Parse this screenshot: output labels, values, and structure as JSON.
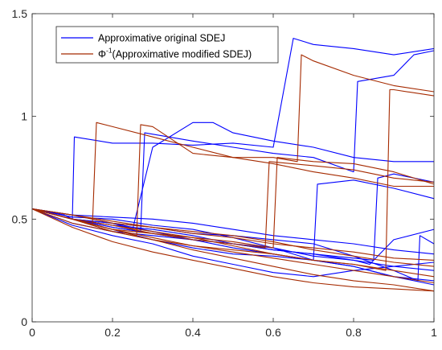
{
  "chart_data": {
    "type": "line",
    "title": "",
    "xlabel": "",
    "ylabel": "",
    "xlim": [
      0,
      1
    ],
    "ylim": [
      0,
      1.5
    ],
    "xticks": [
      "0",
      "0.2",
      "0.4",
      "0.6",
      "0.8",
      "1"
    ],
    "yticks": [
      "0",
      "0.5",
      "1",
      "1.5"
    ],
    "grid": false,
    "legend_position": "top-left",
    "colors": {
      "original": "#0000ff",
      "modified": "#a52a00",
      "axis": "#262626"
    },
    "legend": [
      {
        "key": "original",
        "text": "Approximative original SDEJ"
      },
      {
        "key": "modified",
        "prefix": "Φ",
        "superscript": "-1",
        "text": "(Approximative modified SDEJ)"
      }
    ],
    "series": [
      {
        "group": "original",
        "x": [
          0,
          0.08,
          0.1,
          0.105,
          0.2,
          0.3,
          0.4,
          0.5,
          0.6,
          0.65,
          0.7,
          0.8,
          0.9,
          1.0
        ],
        "y": [
          0.55,
          0.52,
          0.5,
          0.9,
          0.87,
          0.87,
          0.86,
          0.87,
          0.85,
          1.38,
          1.35,
          1.33,
          1.3,
          1.33
        ]
      },
      {
        "group": "original",
        "x": [
          0,
          0.1,
          0.2,
          0.25,
          0.3,
          0.4,
          0.45,
          0.5,
          0.55,
          0.6,
          0.7,
          0.8,
          0.9,
          1.0
        ],
        "y": [
          0.55,
          0.5,
          0.48,
          0.45,
          0.85,
          0.97,
          0.97,
          0.92,
          0.9,
          0.88,
          0.85,
          0.8,
          0.78,
          0.78
        ]
      },
      {
        "group": "original",
        "x": [
          0,
          0.1,
          0.2,
          0.27,
          0.28,
          0.4,
          0.5,
          0.6,
          0.7,
          0.8,
          0.81,
          0.9,
          0.95,
          1.0
        ],
        "y": [
          0.55,
          0.5,
          0.46,
          0.44,
          0.92,
          0.88,
          0.85,
          0.82,
          0.8,
          0.73,
          1.17,
          1.2,
          1.3,
          1.32
        ]
      },
      {
        "group": "original",
        "x": [
          0,
          0.1,
          0.2,
          0.3,
          0.4,
          0.5,
          0.6,
          0.7,
          0.71,
          0.8,
          0.9,
          1.0
        ],
        "y": [
          0.55,
          0.48,
          0.44,
          0.42,
          0.4,
          0.36,
          0.33,
          0.3,
          0.67,
          0.69,
          0.65,
          0.6
        ]
      },
      {
        "group": "original",
        "x": [
          0,
          0.1,
          0.2,
          0.3,
          0.4,
          0.5,
          0.6,
          0.7,
          0.8,
          0.85,
          0.86,
          0.9,
          1.0
        ],
        "y": [
          0.55,
          0.5,
          0.46,
          0.43,
          0.4,
          0.38,
          0.35,
          0.33,
          0.31,
          0.3,
          0.7,
          0.72,
          0.68
        ]
      },
      {
        "group": "original",
        "x": [
          0,
          0.1,
          0.2,
          0.3,
          0.4,
          0.5,
          0.6,
          0.7,
          0.8,
          0.84,
          0.9,
          1.0
        ],
        "y": [
          0.55,
          0.5,
          0.48,
          0.44,
          0.4,
          0.38,
          0.36,
          0.32,
          0.3,
          0.28,
          0.4,
          0.45
        ]
      },
      {
        "group": "original",
        "x": [
          0,
          0.1,
          0.2,
          0.3,
          0.4,
          0.5,
          0.6,
          0.7,
          0.8,
          0.9,
          0.96,
          0.965,
          1.0
        ],
        "y": [
          0.55,
          0.52,
          0.48,
          0.46,
          0.43,
          0.42,
          0.4,
          0.38,
          0.32,
          0.25,
          0.2,
          0.42,
          0.38
        ]
      },
      {
        "group": "original",
        "x": [
          0,
          0.1,
          0.2,
          0.3,
          0.4,
          0.5,
          0.6,
          0.7,
          0.8,
          0.9,
          1.0
        ],
        "y": [
          0.55,
          0.47,
          0.42,
          0.38,
          0.32,
          0.28,
          0.24,
          0.22,
          0.25,
          0.27,
          0.29
        ]
      },
      {
        "group": "original",
        "x": [
          0,
          0.1,
          0.2,
          0.3,
          0.4,
          0.5,
          0.6,
          0.7,
          0.8,
          0.9,
          1.0
        ],
        "y": [
          0.55,
          0.5,
          0.47,
          0.45,
          0.42,
          0.38,
          0.35,
          0.33,
          0.3,
          0.27,
          0.25
        ]
      },
      {
        "group": "original",
        "x": [
          0,
          0.1,
          0.2,
          0.3,
          0.4,
          0.5,
          0.6,
          0.7,
          0.8,
          0.9,
          1.0
        ],
        "y": [
          0.55,
          0.51,
          0.5,
          0.47,
          0.45,
          0.41,
          0.36,
          0.3,
          0.27,
          0.22,
          0.2
        ]
      },
      {
        "group": "original",
        "x": [
          0,
          0.1,
          0.2,
          0.3,
          0.4,
          0.5,
          0.6,
          0.7,
          0.8,
          0.9,
          1.0
        ],
        "y": [
          0.55,
          0.5,
          0.45,
          0.4,
          0.36,
          0.33,
          0.32,
          0.3,
          0.27,
          0.22,
          0.18
        ]
      },
      {
        "group": "original",
        "x": [
          0,
          0.1,
          0.2,
          0.3,
          0.4,
          0.5,
          0.6,
          0.7,
          0.8,
          0.9,
          1.0
        ],
        "y": [
          0.55,
          0.52,
          0.51,
          0.5,
          0.48,
          0.45,
          0.42,
          0.4,
          0.38,
          0.35,
          0.33
        ]
      },
      {
        "group": "modified",
        "x": [
          0,
          0.1,
          0.15,
          0.16,
          0.2,
          0.3,
          0.4,
          0.5,
          0.6,
          0.7,
          0.8,
          0.9,
          1.0
        ],
        "y": [
          0.55,
          0.5,
          0.47,
          0.97,
          0.95,
          0.9,
          0.85,
          0.8,
          0.77,
          0.73,
          0.7,
          0.66,
          0.66
        ]
      },
      {
        "group": "modified",
        "x": [
          0,
          0.1,
          0.2,
          0.26,
          0.27,
          0.3,
          0.4,
          0.5,
          0.6,
          0.66,
          0.67,
          0.7,
          0.8,
          0.9,
          1.0
        ],
        "y": [
          0.55,
          0.5,
          0.45,
          0.42,
          0.96,
          0.95,
          0.82,
          0.8,
          0.8,
          0.78,
          1.3,
          1.27,
          1.2,
          1.15,
          1.12
        ]
      },
      {
        "group": "modified",
        "x": [
          0,
          0.1,
          0.2,
          0.3,
          0.4,
          0.5,
          0.6,
          0.61,
          0.7,
          0.8,
          0.9,
          1.0
        ],
        "y": [
          0.55,
          0.5,
          0.45,
          0.43,
          0.41,
          0.39,
          0.36,
          0.8,
          0.78,
          0.77,
          0.73,
          0.67
        ]
      },
      {
        "group": "modified",
        "x": [
          0,
          0.1,
          0.2,
          0.3,
          0.4,
          0.5,
          0.58,
          0.59,
          0.7,
          0.8,
          0.9,
          1.0
        ],
        "y": [
          0.55,
          0.5,
          0.47,
          0.43,
          0.4,
          0.38,
          0.36,
          0.78,
          0.76,
          0.74,
          0.7,
          0.68
        ]
      },
      {
        "group": "modified",
        "x": [
          0,
          0.1,
          0.2,
          0.3,
          0.4,
          0.5,
          0.6,
          0.7,
          0.8,
          0.88,
          0.89,
          0.9,
          1.0
        ],
        "y": [
          0.55,
          0.48,
          0.44,
          0.4,
          0.37,
          0.35,
          0.33,
          0.3,
          0.28,
          0.25,
          1.13,
          1.13,
          1.1
        ]
      },
      {
        "group": "modified",
        "x": [
          0,
          0.1,
          0.2,
          0.3,
          0.4,
          0.5,
          0.6,
          0.7,
          0.8,
          0.9,
          1.0
        ],
        "y": [
          0.55,
          0.5,
          0.44,
          0.4,
          0.35,
          0.31,
          0.27,
          0.23,
          0.2,
          0.18,
          0.15
        ]
      },
      {
        "group": "modified",
        "x": [
          0,
          0.1,
          0.2,
          0.3,
          0.4,
          0.5,
          0.6,
          0.7,
          0.8,
          0.9,
          1.0
        ],
        "y": [
          0.55,
          0.46,
          0.39,
          0.34,
          0.3,
          0.26,
          0.22,
          0.19,
          0.17,
          0.16,
          0.15
        ]
      },
      {
        "group": "modified",
        "x": [
          0,
          0.1,
          0.2,
          0.3,
          0.4,
          0.5,
          0.6,
          0.7,
          0.8,
          0.9,
          1.0
        ],
        "y": [
          0.55,
          0.5,
          0.47,
          0.44,
          0.41,
          0.37,
          0.33,
          0.3,
          0.28,
          0.25,
          0.22
        ]
      },
      {
        "group": "modified",
        "x": [
          0,
          0.1,
          0.2,
          0.3,
          0.4,
          0.5,
          0.6,
          0.7,
          0.8,
          0.9,
          1.0
        ],
        "y": [
          0.55,
          0.52,
          0.48,
          0.46,
          0.43,
          0.41,
          0.38,
          0.36,
          0.34,
          0.31,
          0.3
        ]
      },
      {
        "group": "modified",
        "x": [
          0,
          0.1,
          0.2,
          0.3,
          0.4,
          0.5,
          0.6,
          0.7,
          0.8,
          0.9,
          1.0
        ],
        "y": [
          0.55,
          0.5,
          0.45,
          0.41,
          0.37,
          0.34,
          0.31,
          0.28,
          0.25,
          0.22,
          0.19
        ]
      },
      {
        "group": "modified",
        "x": [
          0,
          0.1,
          0.2,
          0.3,
          0.4,
          0.5,
          0.6,
          0.7,
          0.8,
          0.9,
          1.0
        ],
        "y": [
          0.55,
          0.52,
          0.49,
          0.46,
          0.44,
          0.42,
          0.39,
          0.35,
          0.32,
          0.29,
          0.27
        ]
      }
    ]
  }
}
